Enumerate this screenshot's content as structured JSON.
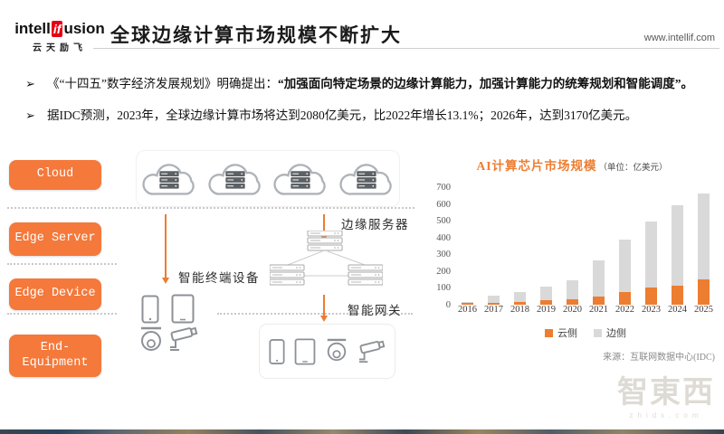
{
  "header": {
    "logo_part1": "intell",
    "logo_if": "if",
    "logo_part2": "usion",
    "logo_sub": "云天励飞",
    "title": "全球边缘计算市场规模不断扩大",
    "website": "www.intellif.com"
  },
  "bullets": [
    {
      "marker": "➢",
      "prefix": "《“十四五”数字经济发展规划》明确提出：",
      "emphasis": "“加强面向特定场景的边缘计算能力，加强计算能力的统筹规划和智能调度”。"
    },
    {
      "marker": "➢",
      "text": "据IDC预测，2023年，全球边缘计算市场将达到2080亿美元，比2022年增长13.1%；2026年，达到3170亿美元。"
    }
  ],
  "layer_buttons": [
    "Cloud",
    "Edge Server",
    "Edge Device",
    "End-Equipment"
  ],
  "diagram_labels": {
    "edge_server": "边缘服务器",
    "smart_terminal": "智能终端设备",
    "smart_gateway": "智能网关"
  },
  "chart_data": {
    "type": "bar",
    "stacked": true,
    "title": "AI计算芯片市场规模",
    "unit": "（单位：亿美元）",
    "categories": [
      "2016",
      "2017",
      "2018",
      "2019",
      "2020",
      "2021",
      "2022",
      "2023",
      "2024",
      "2025"
    ],
    "series": [
      {
        "name": "云侧",
        "color": "#ed7d31",
        "values": [
          10,
          12,
          18,
          25,
          30,
          50,
          75,
          100,
          113,
          150
        ]
      },
      {
        "name": "边侧",
        "color": "#d9d9d9",
        "values": [
          5,
          40,
          57,
          85,
          115,
          215,
          315,
          395,
          480,
          515
        ]
      }
    ],
    "totals": [
      15,
      52,
      75,
      110,
      145,
      265,
      390,
      495,
      593,
      665
    ],
    "ylim": [
      0,
      700
    ],
    "ytick_step": 100,
    "grid": false,
    "legend_position": "bottom",
    "source": "来源：互联网数据中心(IDC)"
  },
  "watermark": {
    "name": "智東西",
    "domain": "zhidx.com"
  },
  "colors": {
    "accent_orange": "#ed7d31",
    "button_orange": "#f4793b",
    "bar_gray": "#d9d9d9",
    "logo_red": "#e60012"
  }
}
